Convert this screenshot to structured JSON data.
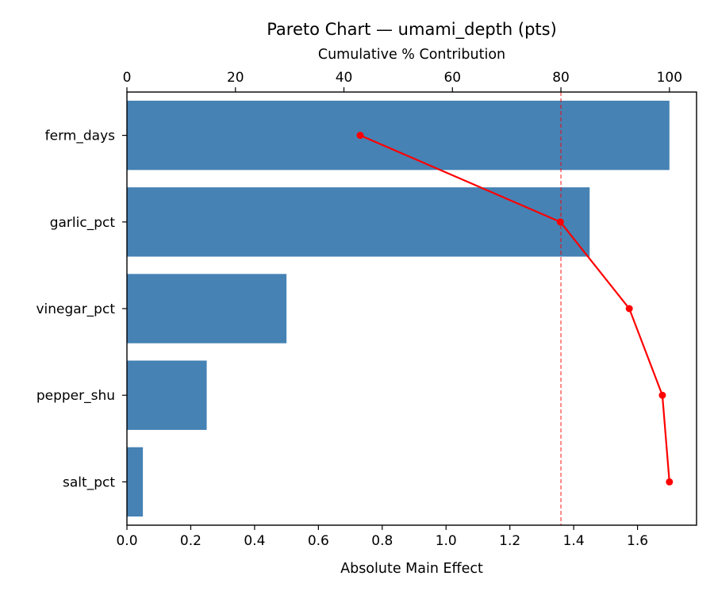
{
  "chart_data": {
    "type": "bar",
    "orientation": "horizontal",
    "title": "Pareto Chart — umami_depth (pts)",
    "xlabel": "Absolute Main Effect",
    "top_xlabel": "Cumulative % Contribution",
    "categories": [
      "ferm_days",
      "garlic_pct",
      "vinegar_pct",
      "pepper_shu",
      "salt_pct"
    ],
    "series": [
      {
        "values": [
          1.7,
          1.45,
          0.5,
          0.25,
          0.05
        ]
      },
      {
        "values": [
          43.0,
          79.9,
          92.6,
          98.7,
          100.0
        ]
      }
    ],
    "xlim": [
      0,
      1.785
    ],
    "xticks": [
      "0.0",
      "0.2",
      "0.4",
      "0.6",
      "0.8",
      "1.0",
      "1.2",
      "1.4",
      "1.6"
    ],
    "top_xlim": [
      0,
      105
    ],
    "top_xticks": [
      "0",
      "20",
      "40",
      "60",
      "80",
      "100"
    ],
    "reference_line": {
      "axis": "top",
      "value": 80
    },
    "grid": false,
    "legend": "none",
    "colors": {
      "bars": "#4682b4",
      "cumulative": "#ff0000",
      "reference": "#ff0000"
    }
  }
}
